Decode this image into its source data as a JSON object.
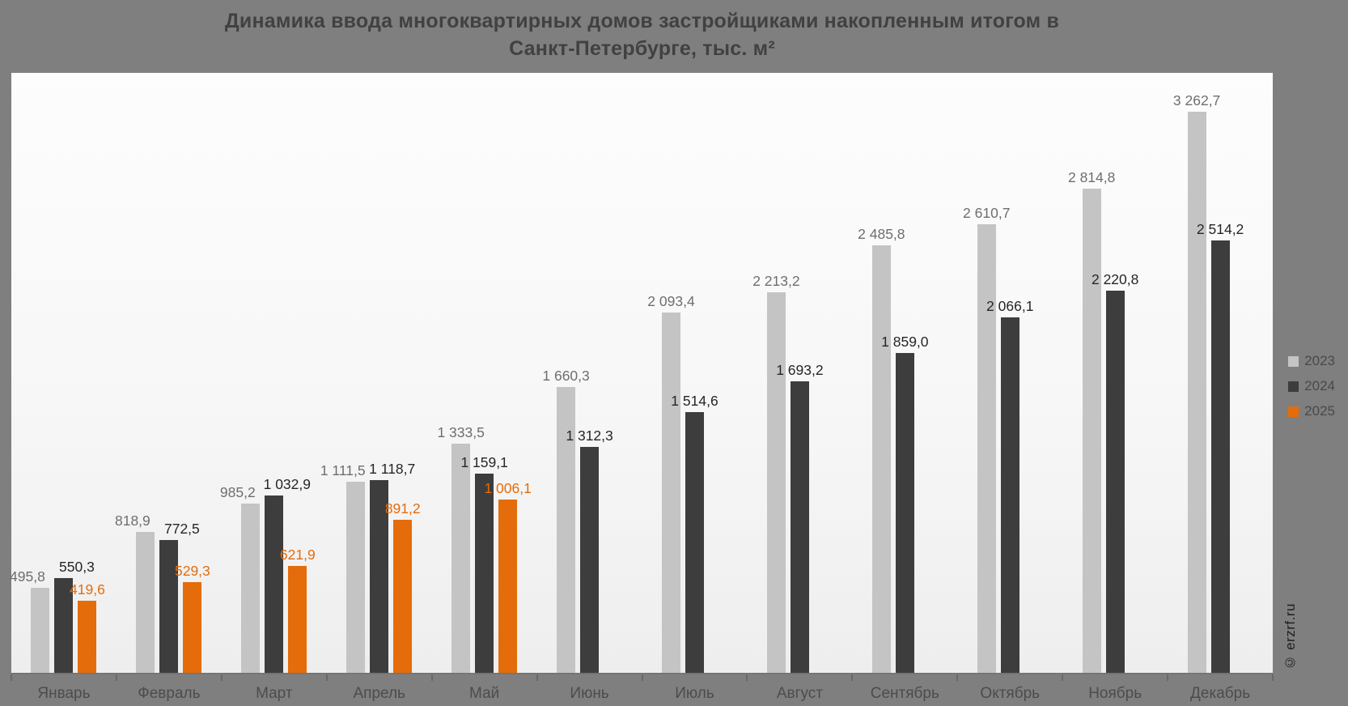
{
  "title": {
    "line1": "Динамика ввода многоквартирных домов застройщиками накопленным итогом в",
    "line2": "Санкт-Петербурге, тыс. м²"
  },
  "watermark": "© erzrf.ru",
  "colors": {
    "background": "#7f7f7f",
    "plot_background": "#f7f7f7",
    "series_2023": "#c4c4c4",
    "series_2024": "#3d3d3d",
    "series_2025": "#e56c0a"
  },
  "chart_data": {
    "type": "bar",
    "title": "Динамика ввода многоквартирных домов застройщиками накопленным итогом в Санкт-Петербурге, тыс. м²",
    "categories": [
      "Январь",
      "Февраль",
      "Март",
      "Апрель",
      "Май",
      "Июнь",
      "Июль",
      "Август",
      "Сентябрь",
      "Октябрь",
      "Ноябрь",
      "Декабрь"
    ],
    "series": [
      {
        "name": "2023",
        "color": "#c4c4c4",
        "label_color": "#6e6e6e",
        "values": [
          495.8,
          818.9,
          985.2,
          1111.5,
          1333.5,
          1660.3,
          2093.4,
          2213.2,
          2485.8,
          2610.7,
          2814.8,
          3262.7
        ],
        "labels": [
          "495,8",
          "818,9",
          "985,2",
          "1 111,5",
          "1 333,5",
          "1 660,3",
          "2 093,4",
          "2 213,2",
          "2 485,8",
          "2 610,7",
          "2 814,8",
          "3 262,7"
        ]
      },
      {
        "name": "2024",
        "color": "#3d3d3d",
        "label_color": "#262626",
        "values": [
          550.3,
          772.5,
          1032.9,
          1118.7,
          1159.1,
          1312.3,
          1514.6,
          1693.2,
          1859.0,
          2066.1,
          2220.8,
          2514.2
        ],
        "labels": [
          "550,3",
          "772,5",
          "1 032,9",
          "1 118,7",
          "1 159,1",
          "1 312,3",
          "1 514,6",
          "1 693,2",
          "1 859,0",
          "2 066,1",
          "2 220,8",
          "2 514,2"
        ]
      },
      {
        "name": "2025",
        "color": "#e56c0a",
        "label_color": "#e56c0a",
        "values": [
          419.6,
          529.3,
          621.9,
          891.2,
          1006.1,
          null,
          null,
          null,
          null,
          null,
          null,
          null
        ],
        "labels": [
          "419,6",
          "529,3",
          "621,9",
          "891,2",
          "1 006,1",
          null,
          null,
          null,
          null,
          null,
          null,
          null
        ]
      }
    ],
    "ylim": [
      0,
      3489
    ],
    "grid": false,
    "legend_position": "right",
    "value_labels": true
  }
}
